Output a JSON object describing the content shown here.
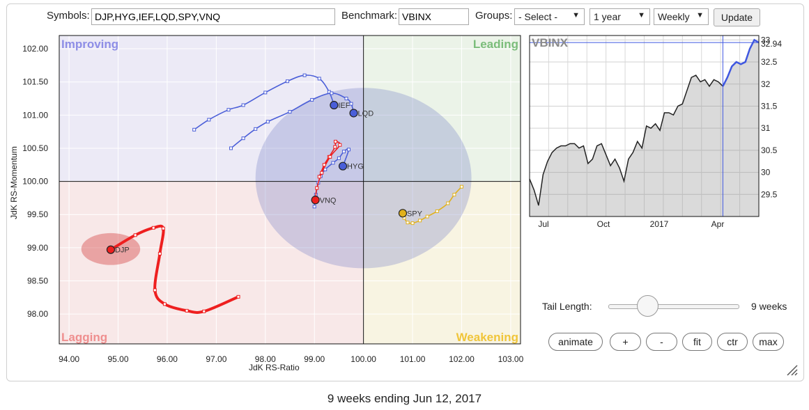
{
  "toolbar": {
    "symbols_label": "Symbols:",
    "symbols_value": "DJP,HYG,IEF,LQD,SPY,VNQ",
    "benchmark_label": "Benchmark:",
    "benchmark_value": "VBINX",
    "groups_label": "Groups:",
    "groups_value": "- Select -",
    "period_value": "1 year",
    "frequency_value": "Weekly",
    "update_label": "Update"
  },
  "controls": {
    "tail_length_label": "Tail Length:",
    "tail_length_value": "9 weeks",
    "tail_length_fraction": 0.3,
    "buttons": [
      "animate",
      "+",
      "-",
      "fit",
      "ctr",
      "max"
    ]
  },
  "footer": {
    "caption": "9 weeks ending Jun 12, 2017"
  },
  "colors": {
    "improving_bg": "#eceaf6",
    "leading_bg": "#ebf3e8",
    "lagging_bg": "#f8e8e8",
    "weakening_bg": "#f8f4e2",
    "improving_label": "#8e8ee6",
    "leading_label": "#7bbd7b",
    "lagging_label": "#ef8f8f",
    "weakening_label": "#f0c53a",
    "blue_tail": "#4a5ed8",
    "red_tail": "#ee1f1f",
    "gold_tail": "#e1b11c",
    "benchmark_line_old": "#222222",
    "benchmark_line_new": "#3f57e0"
  },
  "chart_data": [
    {
      "type": "scatter",
      "title": "",
      "xlabel": "JdK RS-Ratio",
      "ylabel": "JdK RS-Momentum",
      "xlim": [
        93.8,
        103.2
      ],
      "ylim": [
        97.55,
        102.2
      ],
      "x_ticks": [
        "94.00",
        "95.00",
        "96.00",
        "97.00",
        "98.00",
        "99.00",
        "100.00",
        "101.00",
        "102.00",
        "103.00"
      ],
      "y_ticks": [
        "102.00",
        "101.50",
        "101.00",
        "100.50",
        "100.00",
        "99.50",
        "99.00",
        "98.50",
        "98.00"
      ],
      "quadrants": [
        "Improving",
        "Leading",
        "Lagging",
        "Weakening"
      ],
      "highlight_ellipses": [
        {
          "symbol": "DJP",
          "center": [
            94.85,
            98.98
          ],
          "rx": 0.6,
          "ry": 0.24
        },
        {
          "symbol": "group",
          "center": [
            100.0,
            100.05
          ],
          "rx": 2.2,
          "ry": 1.36
        }
      ],
      "series": [
        {
          "name": "IEF",
          "color": "blue_tail",
          "points": [
            [
              96.55,
              100.78
            ],
            [
              96.85,
              100.93
            ],
            [
              97.25,
              101.08
            ],
            [
              97.55,
              101.15
            ],
            [
              98.0,
              101.34
            ],
            [
              98.45,
              101.51
            ],
            [
              98.8,
              101.6
            ],
            [
              99.1,
              101.55
            ],
            [
              99.3,
              101.35
            ],
            [
              99.4,
              101.15
            ]
          ]
        },
        {
          "name": "LQD",
          "color": "blue_tail",
          "points": [
            [
              97.3,
              100.5
            ],
            [
              97.55,
              100.65
            ],
            [
              97.8,
              100.79
            ],
            [
              98.05,
              100.9
            ],
            [
              98.5,
              101.05
            ],
            [
              98.95,
              101.23
            ],
            [
              99.35,
              101.33
            ],
            [
              99.65,
              101.25
            ],
            [
              99.75,
              101.17
            ],
            [
              99.8,
              101.03
            ]
          ]
        },
        {
          "name": "HYG",
          "color": "blue_tail",
          "points": [
            [
              99.0,
              99.62
            ],
            [
              99.03,
              99.8
            ],
            [
              99.08,
              99.98
            ],
            [
              99.13,
              100.08
            ],
            [
              99.22,
              100.18
            ],
            [
              99.38,
              100.28
            ],
            [
              99.5,
              100.35
            ],
            [
              99.6,
              100.45
            ],
            [
              99.7,
              100.48
            ],
            [
              99.58,
              100.23
            ]
          ]
        },
        {
          "name": "VNQ",
          "color": "red_tail",
          "points": [
            [
              99.1,
              100.07
            ],
            [
              99.2,
              100.25
            ],
            [
              99.3,
              100.37
            ],
            [
              99.42,
              100.52
            ],
            [
              99.43,
              100.6
            ],
            [
              99.52,
              100.55
            ],
            [
              99.32,
              100.37
            ],
            [
              99.15,
              100.13
            ],
            [
              99.05,
              99.9
            ],
            [
              99.02,
              99.72
            ]
          ]
        },
        {
          "name": "SPY",
          "color": "gold_tail",
          "points": [
            [
              102.0,
              99.92
            ],
            [
              101.85,
              99.8
            ],
            [
              101.72,
              99.67
            ],
            [
              101.5,
              99.55
            ],
            [
              101.3,
              99.47
            ],
            [
              101.15,
              99.41
            ],
            [
              101.0,
              99.37
            ],
            [
              100.9,
              99.38
            ],
            [
              100.83,
              99.45
            ],
            [
              100.8,
              99.52
            ]
          ]
        },
        {
          "name": "DJP",
          "color": "red_tail",
          "points": [
            [
              97.45,
              98.26
            ],
            [
              96.75,
              98.04
            ],
            [
              96.4,
              98.05
            ],
            [
              95.95,
              98.15
            ],
            [
              95.75,
              98.36
            ],
            [
              95.85,
              98.91
            ],
            [
              95.92,
              99.29
            ],
            [
              95.72,
              99.3
            ],
            [
              95.35,
              99.19
            ],
            [
              94.85,
              98.97
            ]
          ]
        }
      ]
    },
    {
      "type": "line",
      "title": "VBINX",
      "x_ticks": [
        "Jul",
        "Oct",
        "2017",
        "Apr"
      ],
      "y_ticks": [
        "33",
        "32.5",
        "32",
        "31.5",
        "31",
        "30.5",
        "30",
        "29.5"
      ],
      "ylim": [
        29.0,
        33.1
      ],
      "last_value_label": "32.94",
      "series": [
        {
          "name": "VBINX",
          "values": [
            29.85,
            29.6,
            29.25,
            29.95,
            30.25,
            30.45,
            30.55,
            30.6,
            30.6,
            30.65,
            30.65,
            30.55,
            30.6,
            30.2,
            30.3,
            30.6,
            30.65,
            30.4,
            30.15,
            30.3,
            30.1,
            29.8,
            30.3,
            30.45,
            30.7,
            30.55,
            31.05,
            31.0,
            31.1,
            30.95,
            31.35,
            31.35,
            31.3,
            31.5,
            31.55,
            31.85,
            32.15,
            32.2,
            32.05,
            32.1,
            31.95,
            32.1,
            32.05,
            31.95,
            32.15,
            32.4,
            32.5,
            32.45,
            32.5,
            32.8,
            33.0,
            32.94
          ]
        }
      ],
      "tail_start_index": 43
    }
  ]
}
